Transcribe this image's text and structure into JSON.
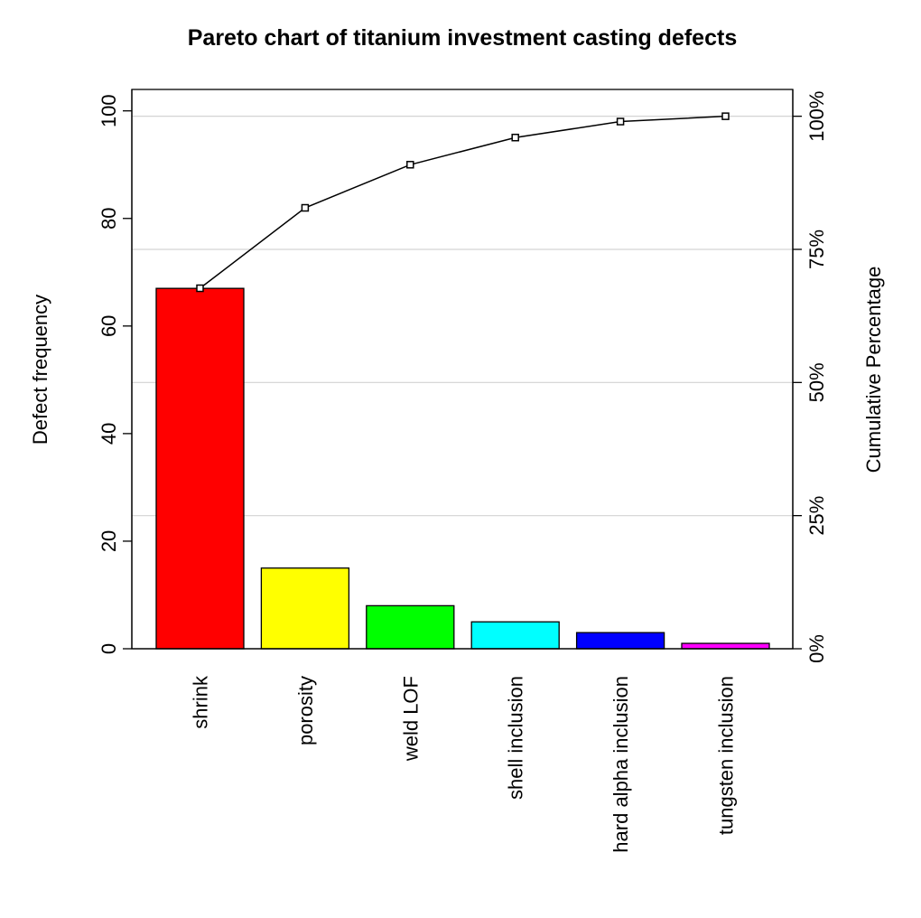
{
  "chart_data": {
    "type": "bar",
    "title": "Pareto chart of titanium investment casting defects",
    "xlabel": "",
    "ylabel": "Defect frequency",
    "y2label": "Cumulative Percentage",
    "categories": [
      "shrink",
      "porosity",
      "weld LOF",
      "shell inclusion",
      "hard alpha inclusion",
      "tungsten inclusion"
    ],
    "values": [
      67,
      15,
      8,
      5,
      3,
      1
    ],
    "colors": [
      "#ff0000",
      "#ffff00",
      "#00ff00",
      "#00ffff",
      "#0000ff",
      "#ff00ff"
    ],
    "cumulative_percentage": [
      67.7,
      82.8,
      90.9,
      96.0,
      99.0,
      100.0
    ],
    "ylim": [
      0,
      99
    ],
    "yticks": [
      "0",
      "20",
      "40",
      "60",
      "80",
      "100"
    ],
    "y2ticks": [
      "0%",
      "25%",
      "50%",
      "75%",
      "100%"
    ],
    "grid": "horizontal at cumulative percentage ticks",
    "legend": "none"
  }
}
